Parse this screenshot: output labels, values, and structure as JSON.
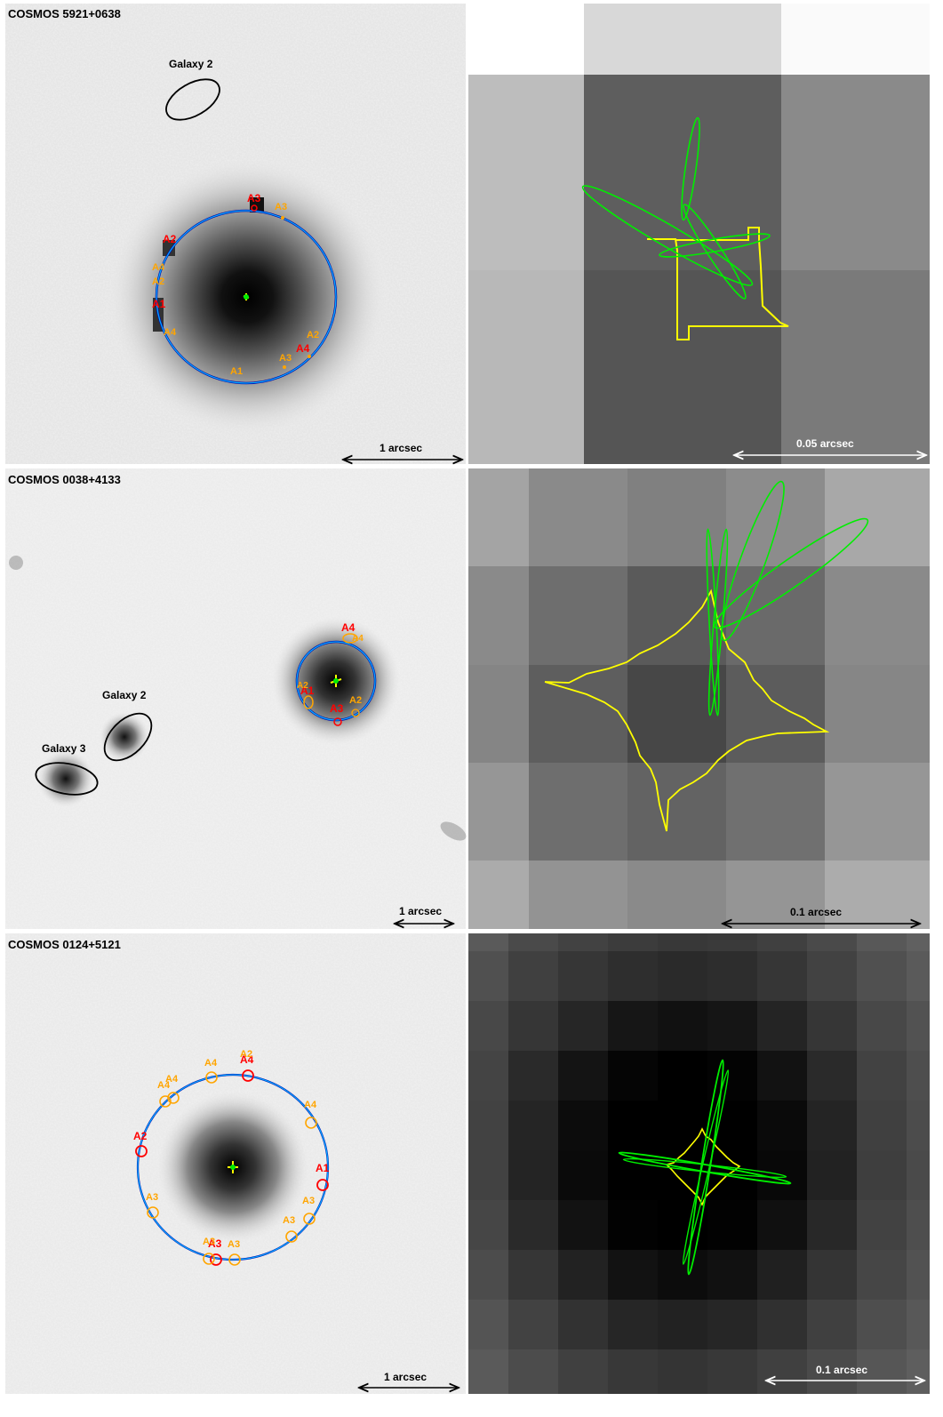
{
  "panels": [
    {
      "title": "COSMOS 5921+0638",
      "galaxy_labels": [
        "Galaxy 2"
      ],
      "image_labels_red": [
        "A3",
        "A2",
        "A1",
        "A4"
      ],
      "image_labels_orange": [
        "A3",
        "A4",
        "A2",
        "A4",
        "A2",
        "A3",
        "A1"
      ],
      "scale_left": "1 arcsec",
      "scale_right": "0.05 arcsec"
    },
    {
      "title": "COSMOS 0038+4133",
      "galaxy_labels": [
        "Galaxy 2",
        "Galaxy 3"
      ],
      "image_labels_red": [
        "A4",
        "A1",
        "A3"
      ],
      "image_labels_orange": [
        "A4",
        "A2",
        "A2"
      ],
      "scale_left": "1 arcsec",
      "scale_right": "0.1 arcsec"
    },
    {
      "title": "COSMOS 0124+5121",
      "galaxy_labels": [],
      "image_labels_red": [
        "A4",
        "A2",
        "A1",
        "A3"
      ],
      "image_labels_orange": [
        "A2",
        "A4",
        "A4",
        "A4",
        "A4",
        "A3",
        "A3",
        "A3",
        "A3",
        "A3"
      ],
      "scale_left": "1 arcsec",
      "scale_right": "0.1 arcsec"
    }
  ],
  "colors": {
    "critical_curve": "#00aaff",
    "critical_curve_inner": "#0000aa",
    "caustic": "#ffff00",
    "source_ellipse": "#00ee00",
    "image_red": "#ff0000",
    "image_orange": "#ffa500"
  }
}
